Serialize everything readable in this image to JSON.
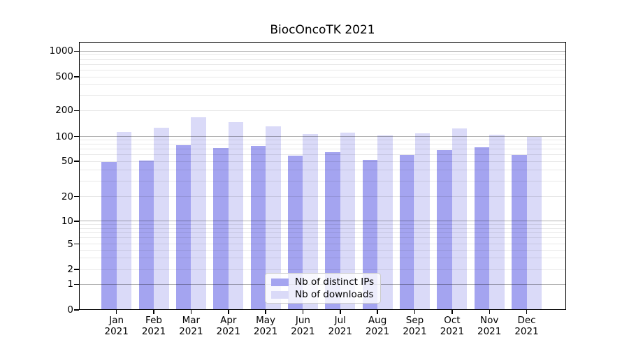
{
  "title": "BiocOncoTK 2021",
  "chart_data": {
    "type": "bar",
    "title": "BiocOncoTK 2021",
    "categories": [
      "Jan 2021",
      "Feb 2021",
      "Mar 2021",
      "Apr 2021",
      "May 2021",
      "Jun 2021",
      "Jul 2021",
      "Aug 2021",
      "Sep 2021",
      "Oct 2021",
      "Nov 2021",
      "Dec 2021"
    ],
    "series": [
      {
        "name": "Nb of distinct IPs",
        "color": "#a4a4f0",
        "values": [
          49,
          51,
          78,
          72,
          77,
          59,
          65,
          52,
          60,
          68,
          74,
          60
        ]
      },
      {
        "name": "Nb of downloads",
        "color": "#dadaf8",
        "values": [
          112,
          127,
          168,
          147,
          130,
          107,
          111,
          103,
          109,
          123,
          105,
          100
        ]
      }
    ],
    "xlabel": "",
    "ylabel": "",
    "y_axis": {
      "scale": "pseudo-log (log decades compressing to linear at 0)",
      "tick_labels": [
        1000,
        500,
        200,
        100,
        50,
        20,
        10,
        5,
        2,
        1,
        0
      ],
      "range": [
        0,
        1285
      ]
    },
    "grid": "on",
    "legend_position": "inside plot, lower center"
  },
  "legend": {
    "items": [
      {
        "label": "Nb of distinct IPs"
      },
      {
        "label": "Nb of downloads"
      }
    ]
  },
  "colors": {
    "distinct_ips_bar": "#a4a4f0",
    "downloads_bar": "#dadaf8",
    "grid_major": "#b0b0b0",
    "grid_minor": "#e8e8e8",
    "axis_frame": "#000000",
    "legend_border": "#cccccc",
    "background": "#ffffff"
  }
}
